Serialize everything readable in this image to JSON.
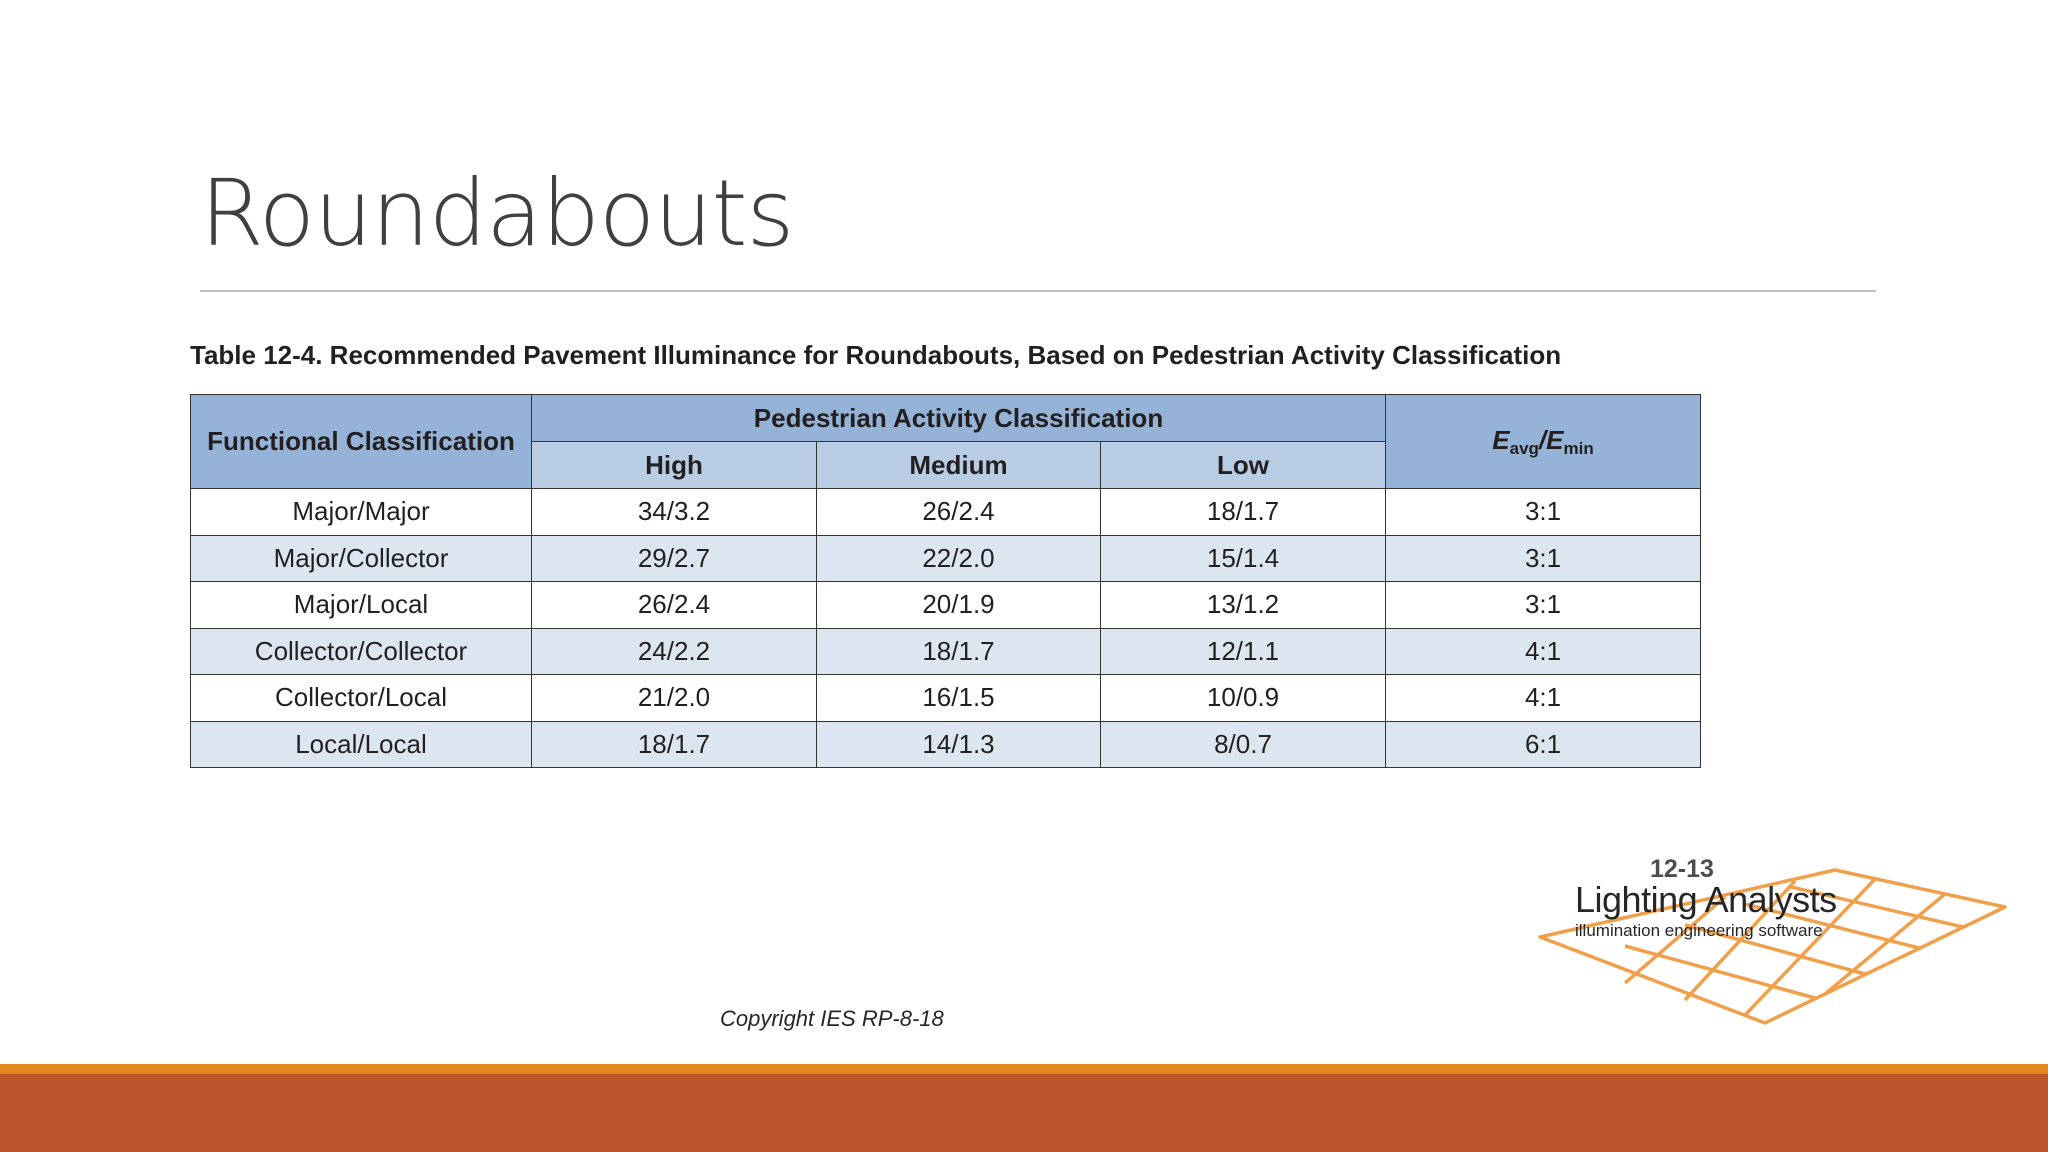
{
  "slide": {
    "title": "Roundabouts",
    "copyright": "Copyright IES RP-8-18"
  },
  "table": {
    "caption": "Table 12-4. Recommended Pavement Illuminance for Roundabouts, Based on Pedestrian Activity Classification",
    "headers": {
      "functional": "Functional Classification",
      "pedestrian_group": "Pedestrian Activity Classification",
      "high": "High",
      "medium": "Medium",
      "low": "Low",
      "ratio_e1": "E",
      "ratio_s1": "avg",
      "ratio_sep": "/",
      "ratio_e2": "E",
      "ratio_s2": "min"
    },
    "rows": [
      {
        "classification": "Major/Major",
        "high": "34/3.2",
        "medium": "26/2.4",
        "low": "18/1.7",
        "ratio": "3:1"
      },
      {
        "classification": "Major/Collector",
        "high": "29/2.7",
        "medium": "22/2.0",
        "low": "15/1.4",
        "ratio": "3:1"
      },
      {
        "classification": "Major/Local",
        "high": "26/2.4",
        "medium": "20/1.9",
        "low": "13/1.2",
        "ratio": "3:1"
      },
      {
        "classification": "Collector/Collector",
        "high": "24/2.2",
        "medium": "18/1.7",
        "low": "12/1.1",
        "ratio": "4:1"
      },
      {
        "classification": "Collector/Local",
        "high": "21/2.0",
        "medium": "16/1.5",
        "low": "10/0.9",
        "ratio": "4:1"
      },
      {
        "classification": "Local/Local",
        "high": "18/1.7",
        "medium": "14/1.3",
        "low": "8/0.7",
        "ratio": "6:1"
      }
    ]
  },
  "logo": {
    "number": "12-13",
    "name": "Lighting Analysts",
    "tagline": "illumination engineering software",
    "grid_color": "#f0a04b"
  },
  "colors": {
    "header_dark": "#95b3d7",
    "header_light": "#b8cce4",
    "row_stripe": "#dce6f1",
    "bottom_bar": "#bb562c",
    "bottom_accent": "#e3861f"
  }
}
